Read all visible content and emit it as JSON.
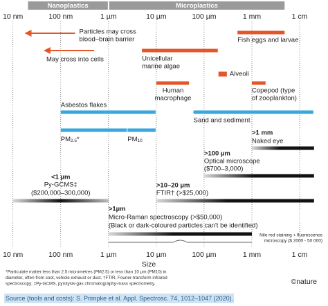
{
  "chart_data": {
    "type": "range",
    "log_x": true,
    "grid": true,
    "xlabel": "Size",
    "xlim": [
      7e-09,
      0.03
    ],
    "xticks": [
      {
        "value": 1e-08,
        "label": "10 nm"
      },
      {
        "value": 1e-07,
        "label": "100 nm"
      },
      {
        "value": 1e-06,
        "label": "1 µm"
      },
      {
        "value": 1e-05,
        "label": "10 µm"
      },
      {
        "value": 0.0001,
        "label": "100 µm"
      },
      {
        "value": 0.001,
        "label": "1 mm"
      },
      {
        "value": 0.01,
        "label": "1 cm"
      }
    ],
    "bands": [
      {
        "name": "Nanoplastics",
        "values": [
          2e-08,
          1e-06
        ],
        "color": "#9a9a9a"
      },
      {
        "name": "Microplastics",
        "values": [
          1e-06,
          0.005
        ],
        "color": "#9a9a9a"
      }
    ],
    "arrows": [
      {
        "label": [
          "Particles may cross",
          "blood–brain barrier"
        ],
        "values": [
          2e-08,
          2e-07
        ],
        "color": "#e4562a"
      },
      {
        "label": [
          "May cross into cells"
        ],
        "values": [
          5e-08,
          5e-07
        ],
        "color": "#e4562a"
      }
    ],
    "objects": [
      {
        "label": [
          "Fish eggs and larvae"
        ],
        "values": [
          0.0005,
          0.005
        ],
        "color": "#e4562a"
      },
      {
        "label": [
          "Unicellular",
          "marine algae"
        ],
        "values": [
          5e-06,
          0.0002
        ],
        "color": "#e4562a"
      },
      {
        "label": [
          "Alveoli"
        ],
        "values": [
          0.0002,
          0.0003
        ],
        "color": "#e4562a"
      },
      {
        "label": [
          "Human",
          "macrophage"
        ],
        "values": [
          1e-05,
          5e-05
        ],
        "color": "#e4562a"
      },
      {
        "label": [
          "Copepod (type",
          "of zooplankton)"
        ],
        "values": [
          0.001,
          0.002
        ],
        "color": "#e4562a"
      },
      {
        "label": [
          "Asbestos flakes"
        ],
        "values": [
          1e-07,
          1e-05
        ],
        "color": "#3aa6dc"
      },
      {
        "label": [
          "Sand and sediment"
        ],
        "values": [
          6e-05,
          0.02
        ],
        "color": "#3aa6dc"
      },
      {
        "label": {
          "text": "PM",
          "sub": "2.5",
          "suffix": "*"
        },
        "values": [
          1e-07,
          2.5e-06
        ],
        "color": "#3aa6dc"
      },
      {
        "label": {
          "text": "PM",
          "sub": "10",
          "suffix": ""
        },
        "values": [
          2.5e-06,
          1e-05
        ],
        "color": "#3aa6dc"
      }
    ],
    "methods": [
      {
        "label": [
          ">1 mm",
          "Naked eye"
        ],
        "values": [
          0.001,
          0.02
        ]
      },
      {
        "label": [
          ">100 µm",
          "Optical microscope",
          "($700–3,000)"
        ],
        "values": [
          0.0001,
          0.02
        ]
      },
      {
        "label": [
          "<1 µm",
          "Py-GCMS‡",
          "($200,000–300,000)"
        ],
        "values": [
          1e-08,
          1e-06
        ]
      },
      {
        "label": [
          ">10–20 µm",
          "FTIR† (>$25,000)"
        ],
        "values": [
          1e-05,
          0.02
        ]
      },
      {
        "label": [
          ">1µm",
          "Micro-Raman spectroscopy (>$50,000)",
          "(Black or dark-coloured particles can't be identified)"
        ],
        "values": [
          1e-06,
          0.001
        ]
      }
    ],
    "nile_red": {
      "label": [
        "Nile red staining + fluorescence",
        "microscopy ($ 2000 - 50 000)"
      ],
      "values": [
        1e-06,
        0.001
      ]
    }
  },
  "footnote": [
    "*Particulate matter less than 2.5 micrometres (PM2.5) or less than 10 µm (PM10) in",
    "diameter, often from soot, vehicle exhaust or dust. †FTIR, Fourier-transform infrared",
    "spectroscopy; ‡Py-GCMS, pyrolysis-gas chromatography-mass spectrometry."
  ],
  "credit": "©nature",
  "source": "Source (tools and costs): S. Primpke et al. Appl. Spectrosc. 74, 1012–1047 (2020)."
}
